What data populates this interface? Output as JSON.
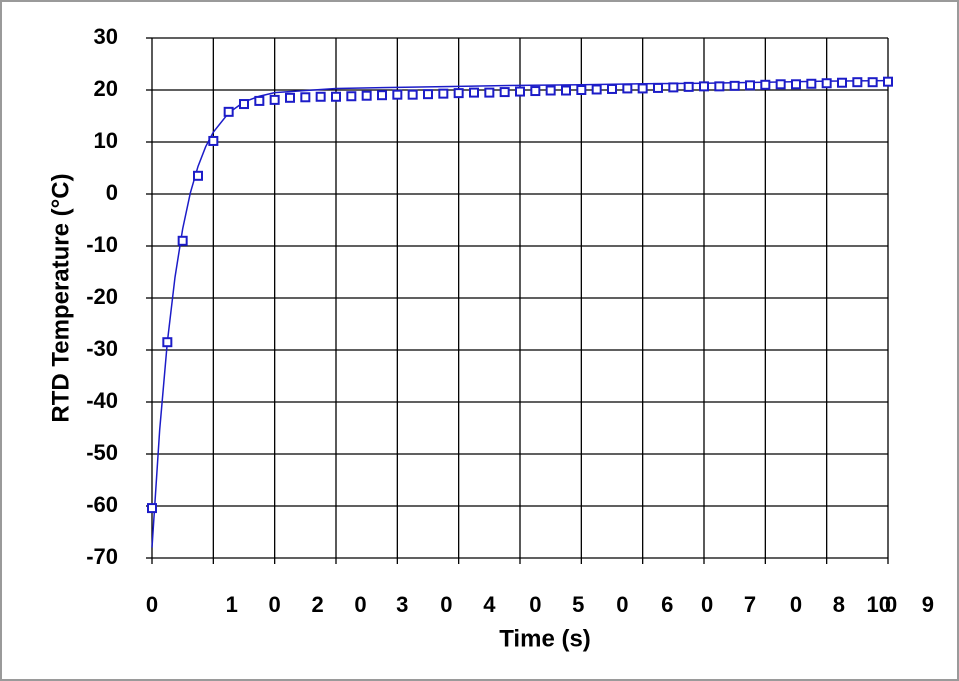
{
  "chart_data": {
    "type": "scatter",
    "x_label": "Time (s)",
    "y_label": "RTD Temperature (°C)",
    "xlim": [
      0,
      12
    ],
    "ylim": [
      -70,
      30
    ],
    "yticks": [
      -70,
      -60,
      -50,
      -40,
      -30,
      -20,
      -10,
      0,
      10,
      20,
      30
    ],
    "xticks": [
      {
        "value": 0,
        "label": "0"
      },
      {
        "value": 1.3,
        "label": "1"
      },
      {
        "value": 2.0,
        "label": "0"
      },
      {
        "value": 2.7,
        "label": "2"
      },
      {
        "value": 3.4,
        "label": "0"
      },
      {
        "value": 4.08,
        "label": "3"
      },
      {
        "value": 4.8,
        "label": "0"
      },
      {
        "value": 5.5,
        "label": "4"
      },
      {
        "value": 6.25,
        "label": "0"
      },
      {
        "value": 6.95,
        "label": "5"
      },
      {
        "value": 7.67,
        "label": "0"
      },
      {
        "value": 8.4,
        "label": "6"
      },
      {
        "value": 9.05,
        "label": "0"
      },
      {
        "value": 9.75,
        "label": "7"
      },
      {
        "value": 10.5,
        "label": "0"
      },
      {
        "value": 11.2,
        "label": "8"
      },
      {
        "value": 11.85,
        "label": "10"
      },
      {
        "value": 12.05,
        "label": "0"
      },
      {
        "value": 12.65,
        "label": "9"
      }
    ],
    "x_grid": [
      0,
      1,
      2,
      3,
      4,
      5,
      6,
      7,
      8,
      9,
      10,
      11,
      12
    ],
    "grid": true,
    "series": [
      {
        "type": "scatter",
        "color": "#1c1cc8",
        "x": [
          0,
          0.25,
          0.5,
          0.75,
          1,
          1.25,
          1.5,
          1.75,
          2,
          2.25,
          2.5,
          2.75,
          3,
          3.25,
          3.5,
          3.75,
          4,
          4.25,
          4.5,
          4.75,
          5,
          5.25,
          5.5,
          5.75,
          6,
          6.25,
          6.5,
          6.75,
          7,
          7.25,
          7.5,
          7.75,
          8,
          8.25,
          8.5,
          8.75,
          9,
          9.25,
          9.5,
          9.75,
          10,
          10.25,
          10.5,
          10.75,
          11,
          11.25,
          11.5,
          11.75,
          12
        ],
        "values": [
          -60.4,
          -28.5,
          -9,
          3.5,
          10.2,
          15.8,
          17.3,
          17.9,
          18.1,
          18.5,
          18.6,
          18.7,
          18.7,
          18.8,
          18.9,
          19.0,
          19.1,
          19.1,
          19.2,
          19.3,
          19.4,
          19.5,
          19.5,
          19.6,
          19.7,
          19.8,
          19.9,
          19.9,
          20.0,
          20.1,
          20.2,
          20.3,
          20.3,
          20.4,
          20.5,
          20.6,
          20.7,
          20.7,
          20.8,
          20.9,
          21.0,
          21.1,
          21.1,
          21.2,
          21.3,
          21.4,
          21.5,
          21.5,
          21.6
        ]
      },
      {
        "type": "line",
        "color": "#1c1cc8",
        "x": [
          0,
          0.125,
          0.25,
          0.375,
          0.5,
          0.625,
          0.75,
          0.875,
          1,
          1.25,
          1.5,
          1.75,
          2,
          3,
          4,
          5,
          6,
          7,
          8,
          9,
          10,
          11,
          12
        ],
        "values": [
          -68,
          -45.4,
          -28.5,
          -16,
          -6.7,
          0.2,
          5.3,
          9.1,
          11.9,
          15.6,
          17.7,
          18.8,
          19.5,
          20.3,
          20.5,
          20.7,
          20.9,
          21.0,
          21.2,
          21.3,
          21.5,
          21.7,
          21.8
        ]
      }
    ]
  }
}
